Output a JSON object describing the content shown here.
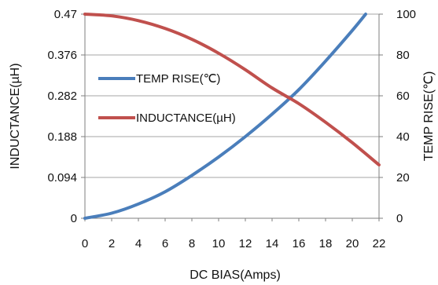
{
  "chart_data": {
    "type": "line",
    "xlabel": "DC  BIAS(Amps)",
    "ylabel_left": "INDUCTANCE(µH)",
    "ylabel_right": "TEMP RISE(℃)",
    "x_ticks": [
      "0",
      "2",
      "4",
      "6",
      "8",
      "10",
      "12",
      "14",
      "16",
      "18",
      "20",
      "22"
    ],
    "y_left_ticks": [
      "0",
      "0.094",
      "0.188",
      "0.282",
      "0.376",
      "0.47"
    ],
    "y_right_ticks": [
      "0",
      "20",
      "40",
      "60",
      "80",
      "100"
    ],
    "xlim": [
      0,
      22
    ],
    "ylim_left": [
      0,
      0.47
    ],
    "ylim_right": [
      0,
      100
    ],
    "grid": "horizontal",
    "legend_position": "center-left",
    "series": [
      {
        "name": "TEMP RISE(℃)",
        "axis": "right",
        "color": "#4a7ebb",
        "x": [
          0,
          2,
          4,
          6,
          8,
          10,
          12,
          14,
          16,
          18,
          20,
          21
        ],
        "y": [
          0,
          2.5,
          7,
          13,
          21,
          30,
          40,
          51,
          63,
          77,
          92,
          100
        ]
      },
      {
        "name": "INDUCTANCE(µH)",
        "axis": "left",
        "color": "#c0504d",
        "x": [
          0,
          2,
          4,
          6,
          8,
          10,
          12,
          14,
          16,
          18,
          20,
          22
        ],
        "y": [
          0.47,
          0.466,
          0.455,
          0.437,
          0.412,
          0.38,
          0.342,
          0.3,
          0.264,
          0.221,
          0.174,
          0.123
        ]
      }
    ]
  }
}
